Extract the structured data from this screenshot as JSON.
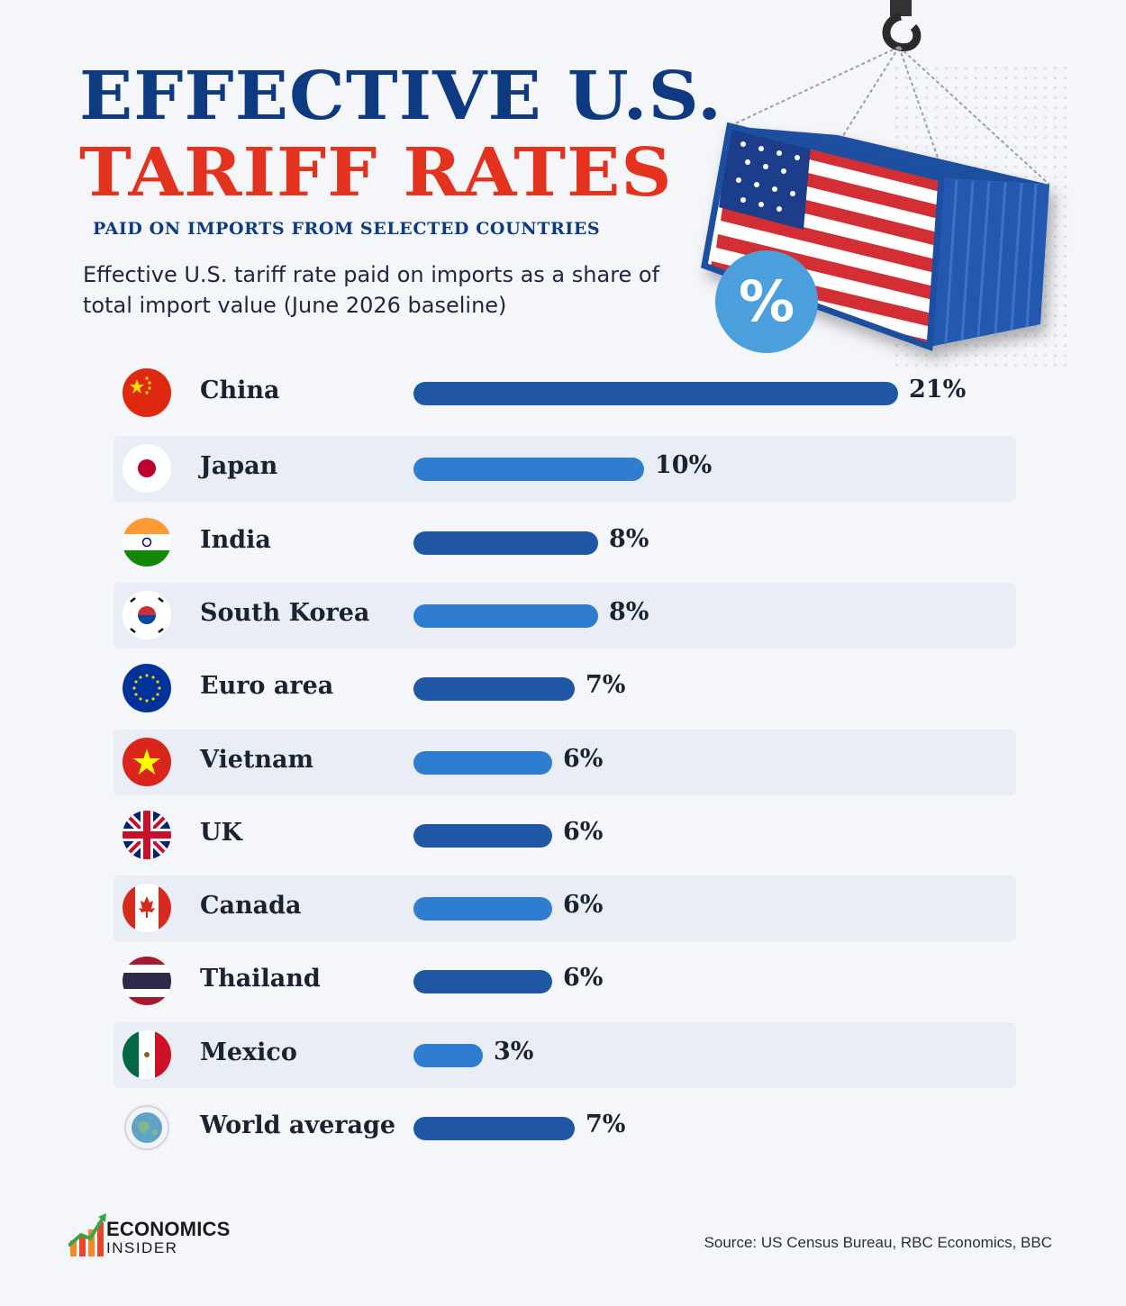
{
  "header": {
    "title_line1": "EFFECTIVE U.S.",
    "title_line2": "TARIFF RATES",
    "subtitle": "PAID ON IMPORTS FROM SELECTED COUNTRIES",
    "description": "Effective U.S. tariff rate paid on imports as a share of total import value (June 2026 baseline)",
    "badge": "%"
  },
  "colors": {
    "title_blue": "#0d3a80",
    "title_red": "#e3321e",
    "bar_dark": "#1f57a4",
    "bar_light": "#2f7dd1",
    "row_shade": "#e9eef6"
  },
  "chart_data": {
    "type": "bar",
    "orientation": "horizontal",
    "title": "EFFECTIVE U.S. TARIFF RATES",
    "subtitle": "PAID ON IMPORTS FROM SELECTED COUNTRIES",
    "xlim": [
      0,
      21
    ],
    "categories": [
      "China",
      "Japan",
      "India",
      "South Korea",
      "Euro area",
      "Vietnam",
      "UK",
      "Canada",
      "Thailand",
      "Mexico",
      "World average"
    ],
    "values": [
      21,
      10,
      8,
      8,
      7,
      6,
      6,
      6,
      6,
      3,
      7
    ],
    "value_labels": [
      "21%",
      "10%",
      "8%",
      "8%",
      "7%",
      "6%",
      "6%",
      "6%",
      "6%",
      "3%",
      "7%"
    ],
    "flags": [
      "china-flag-icon",
      "japan-flag-icon",
      "india-flag-icon",
      "south-korea-flag-icon",
      "eu-flag-icon",
      "vietnam-flag-icon",
      "uk-flag-icon",
      "canada-flag-icon",
      "thailand-flag-icon",
      "mexico-flag-icon",
      "globe-icon"
    ],
    "grid": false,
    "legend": "none"
  },
  "footer": {
    "logo_line1": "ECONOMICS",
    "logo_line2": "INSIDER",
    "source": "Source: US Census Bureau, RBC Economics, BBC"
  }
}
